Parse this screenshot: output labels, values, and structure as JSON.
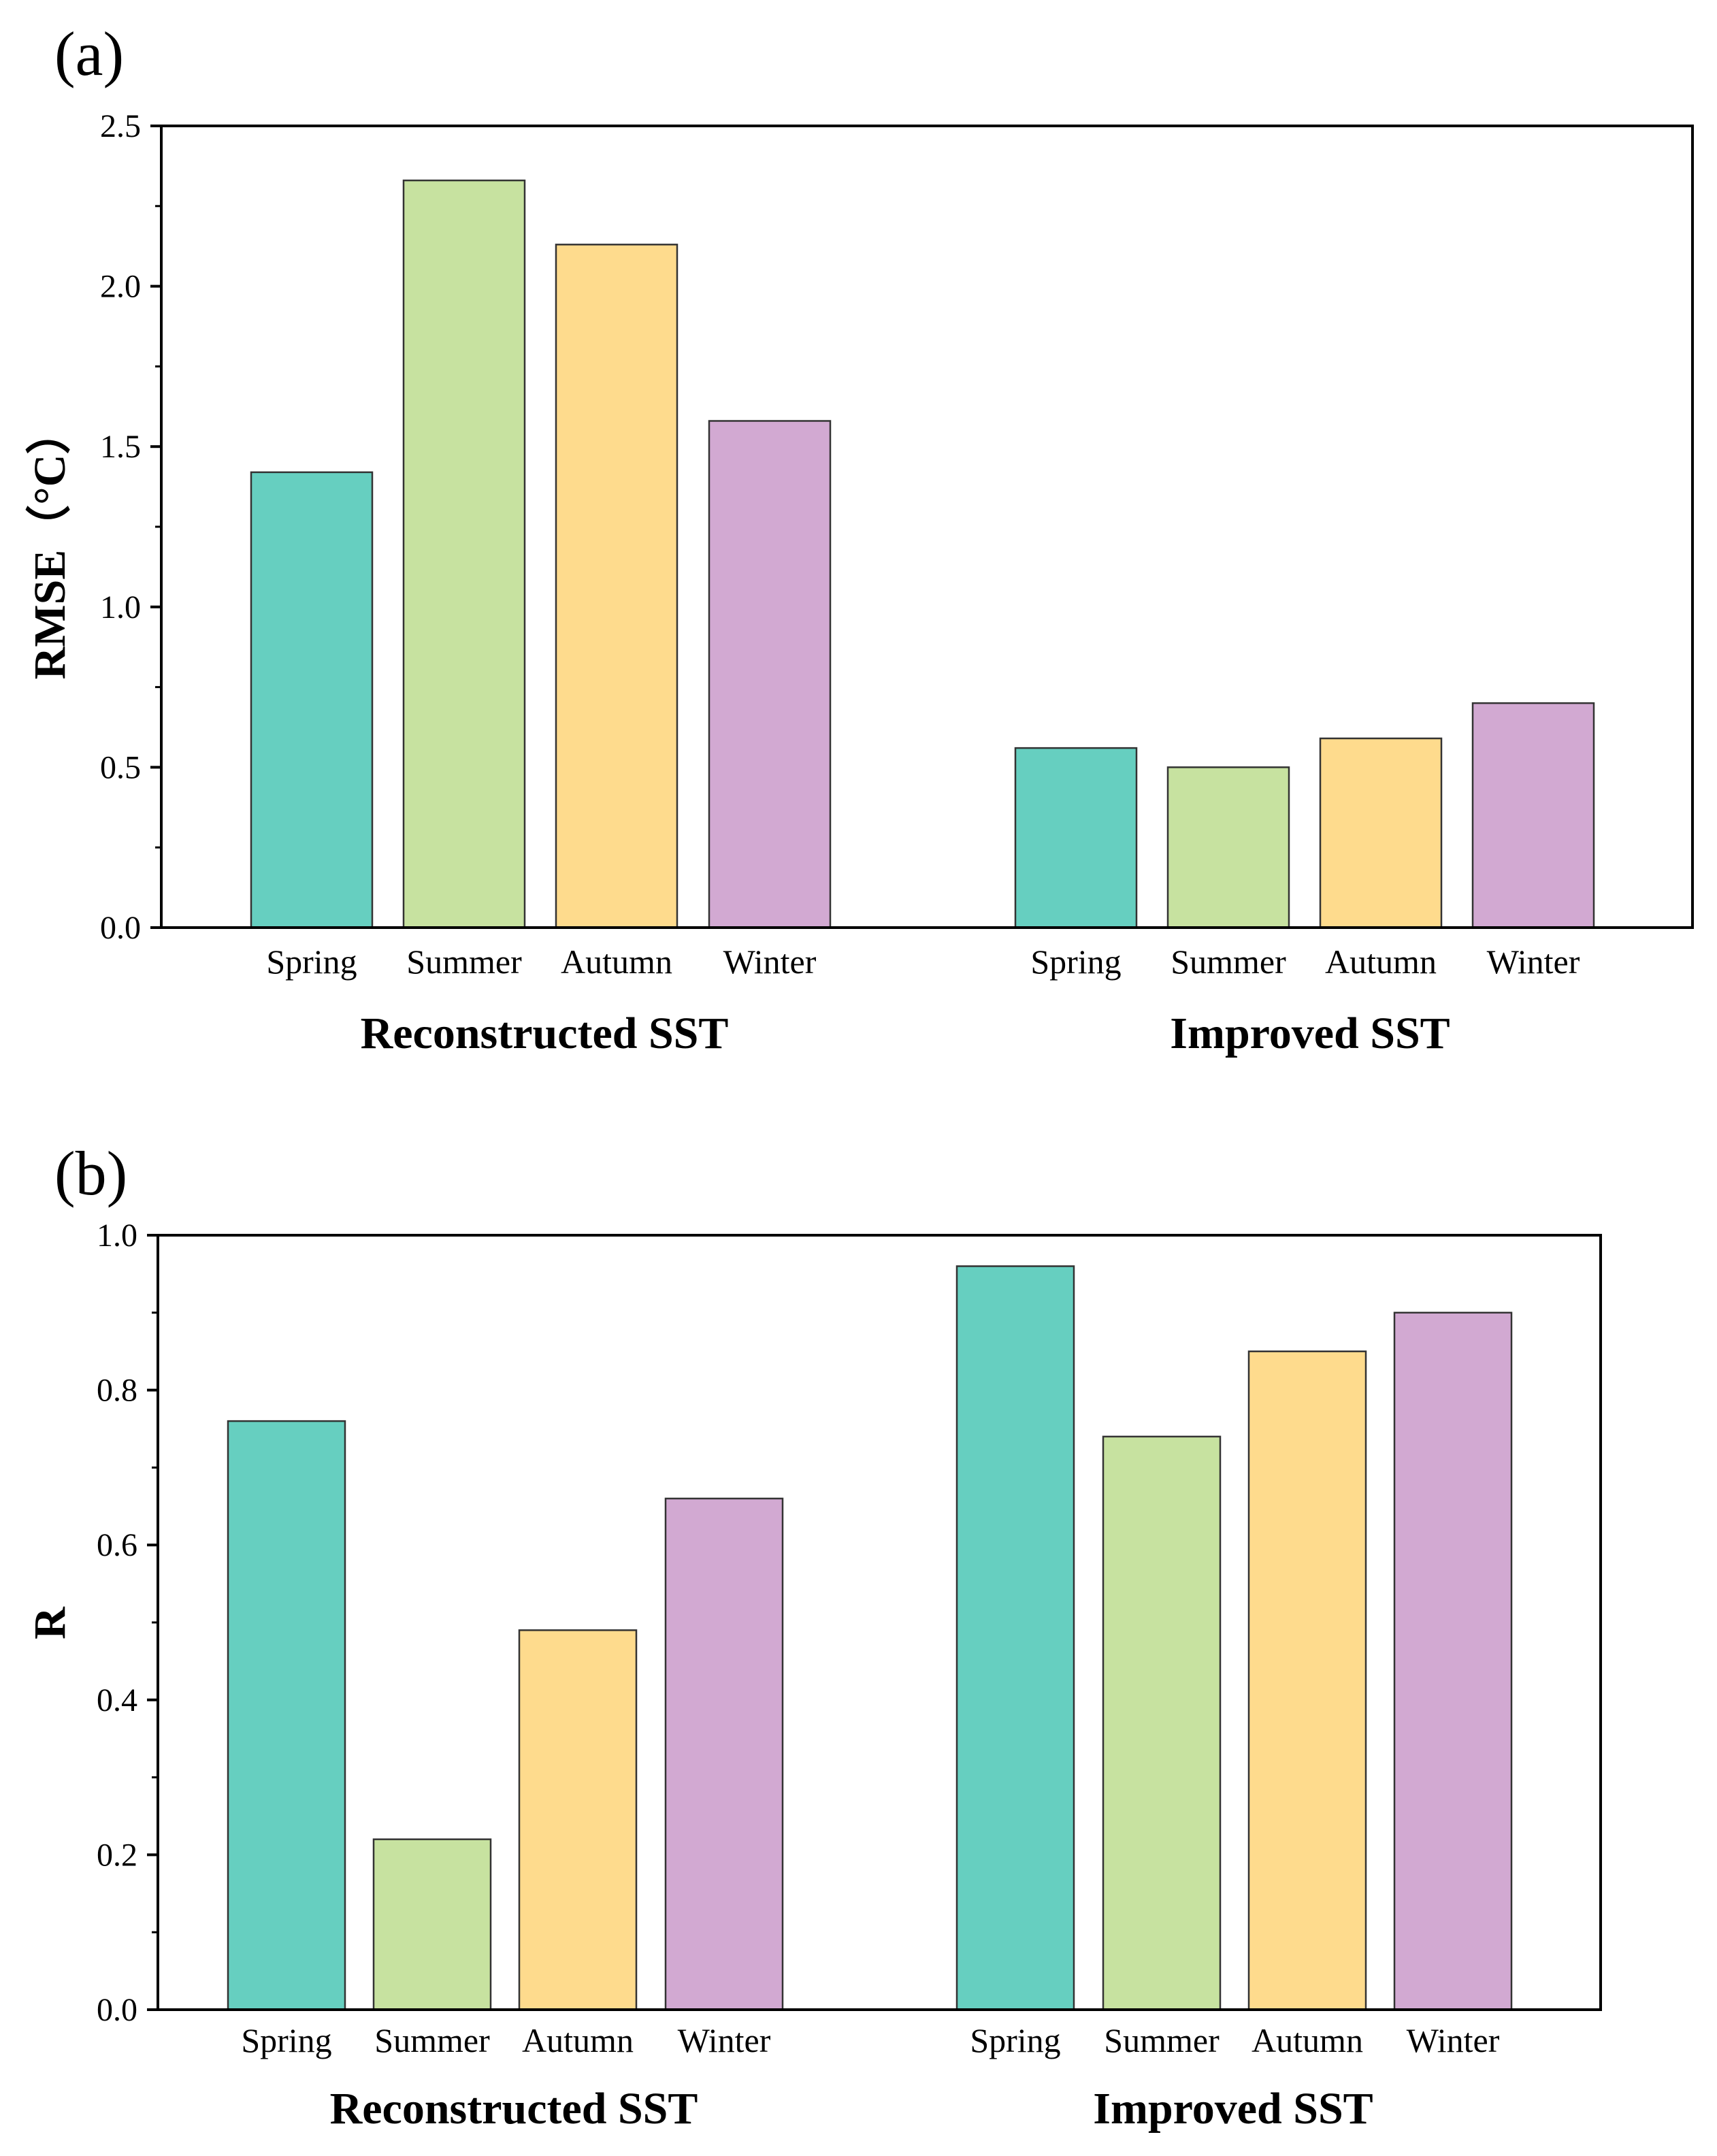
{
  "chart_data": [
    {
      "type": "bar",
      "panel_label": "(a)",
      "ylabel": "RMSE（°C）",
      "ylim": [
        0,
        2.5
      ],
      "yticks": [
        "0.0",
        "0.5",
        "1.0",
        "1.5",
        "2.0",
        "2.5"
      ],
      "groups": [
        {
          "label": "Reconstructed SST",
          "bars": [
            {
              "category": "Spring",
              "value": 1.42,
              "color": "#66CFC0"
            },
            {
              "category": "Summer",
              "value": 2.33,
              "color": "#C7E2A0"
            },
            {
              "category": "Autumn",
              "value": 2.13,
              "color": "#FEDB8D"
            },
            {
              "category": "Winter",
              "value": 1.58,
              "color": "#D2A9D2"
            }
          ]
        },
        {
          "label": "Improved SST",
          "bars": [
            {
              "category": "Spring",
              "value": 0.56,
              "color": "#66CFC0"
            },
            {
              "category": "Summer",
              "value": 0.5,
              "color": "#C7E2A0"
            },
            {
              "category": "Autumn",
              "value": 0.59,
              "color": "#FEDB8D"
            },
            {
              "category": "Winter",
              "value": 0.7,
              "color": "#D2A9D2"
            }
          ]
        }
      ]
    },
    {
      "type": "bar",
      "panel_label": "(b)",
      "ylabel": "R",
      "ylim": [
        0,
        1.0
      ],
      "yticks": [
        "0.0",
        "0.2",
        "0.4",
        "0.6",
        "0.8",
        "1.0"
      ],
      "groups": [
        {
          "label": "Reconstructed SST",
          "bars": [
            {
              "category": "Spring",
              "value": 0.76,
              "color": "#66CFC0"
            },
            {
              "category": "Summer",
              "value": 0.22,
              "color": "#C7E2A0"
            },
            {
              "category": "Autumn",
              "value": 0.49,
              "color": "#FEDB8D"
            },
            {
              "category": "Winter",
              "value": 0.66,
              "color": "#D2A9D2"
            }
          ]
        },
        {
          "label": "Improved SST",
          "bars": [
            {
              "category": "Spring",
              "value": 0.96,
              "color": "#66CFC0"
            },
            {
              "category": "Summer",
              "value": 0.74,
              "color": "#C7E2A0"
            },
            {
              "category": "Autumn",
              "value": 0.85,
              "color": "#FEDB8D"
            },
            {
              "category": "Winter",
              "value": 0.9,
              "color": "#D2A9D2"
            }
          ]
        }
      ]
    }
  ]
}
